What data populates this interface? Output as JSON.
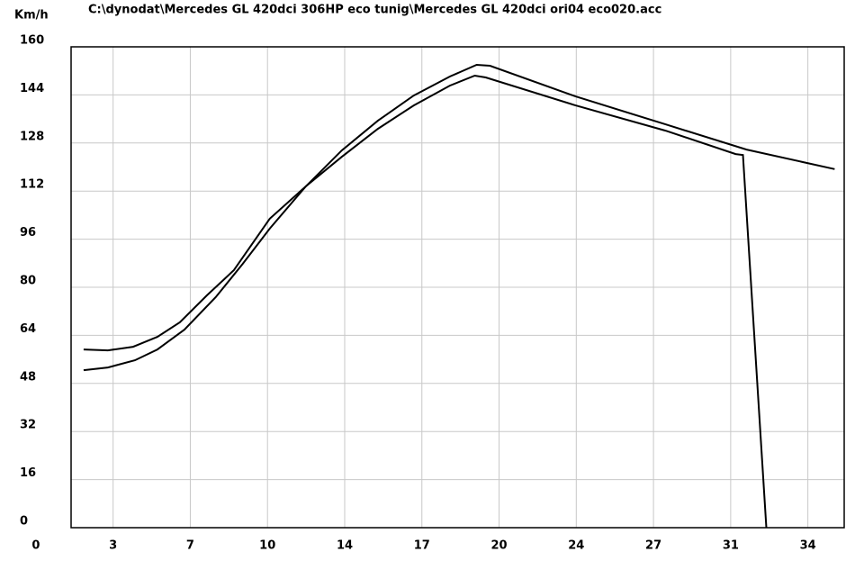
{
  "chart_data": {
    "type": "line",
    "title": "C:\\dynodat\\Mercedes GL 420dci 306HP eco tunig\\Mercedes GL 420dci ori04 eco020.acc",
    "y_label": "Km/h",
    "xlim": [
      1.55,
      35.6
    ],
    "ylim": [
      0,
      160
    ],
    "xticks": [
      0,
      {
        "value": 3.4,
        "label": "3"
      },
      {
        "value": 6.8,
        "label": "7"
      },
      {
        "value": 10.2,
        "label": "10"
      },
      {
        "value": 13.6,
        "label": "14"
      },
      17,
      {
        "value": 20.4,
        "label": "20"
      },
      {
        "value": 23.8,
        "label": "24"
      },
      {
        "value": 27.2,
        "label": "27"
      },
      {
        "value": 30.6,
        "label": "31"
      },
      34
    ],
    "yticks": [
      0,
      16,
      32,
      48,
      64,
      80,
      96,
      112,
      128,
      144,
      160
    ],
    "grid": true,
    "series": [
      {
        "color": "#000000",
        "x": [
          2.1,
          3.17,
          4.28,
          5.35,
          6.34,
          7.53,
          8.72,
          10.3,
          11.89,
          13.47,
          15.06,
          16.64,
          18.23,
          19.41,
          20.0,
          23.77,
          27.73,
          31.3,
          35.18
        ],
        "values": [
          59.3,
          59,
          60.2,
          63.5,
          68.3,
          77.3,
          85.7,
          102.8,
          113.6,
          125.5,
          135.4,
          143.8,
          150.1,
          154,
          153.7,
          143.5,
          134.2,
          125.8,
          119.3
        ]
      },
      {
        "color": "#000000",
        "x": [
          2.1,
          3.17,
          4.36,
          5.35,
          6.54,
          7.92,
          9.11,
          10.3,
          11.89,
          13.47,
          15.06,
          16.64,
          18.23,
          19.33,
          19.81,
          23.77,
          27.73,
          30.82,
          31.14,
          32.17
        ],
        "values": [
          52.4,
          53.3,
          55.7,
          59.3,
          65.9,
          76.7,
          87.8,
          99.5,
          113.6,
          123.4,
          132.7,
          140.5,
          147.1,
          150.4,
          149.8,
          140.5,
          132.1,
          124.3,
          124.0,
          0
        ]
      }
    ]
  }
}
